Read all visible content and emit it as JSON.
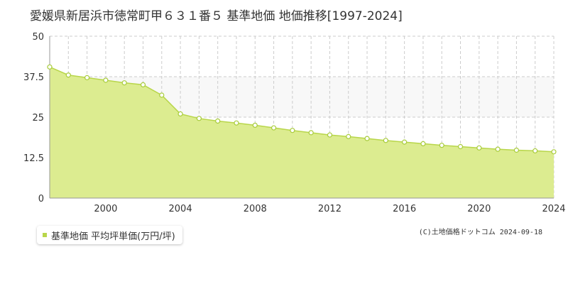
{
  "title": "愛媛県新居浜市徳常町甲６３１番５ 基準地価 地価推移[1997-2024]",
  "legend": {
    "label": "基準地価 平均坪単価(万円/坪)"
  },
  "copyright": "(C)土地価格ドットコム 2024-09-18",
  "colors": {
    "fill": "#dcec90",
    "line": "#b8d64a",
    "marker_fill": "#ffffff",
    "marker_stroke": "#a8cc3a",
    "grid": "#cccccc",
    "band": "#f8f8f8",
    "axis_text": "#333333"
  },
  "chart_data": {
    "type": "area",
    "title": "愛媛県新居浜市徳常町甲６３１番５ 基準地価 地価推移[1997-2024]",
    "x": [
      1997,
      1998,
      1999,
      2000,
      2001,
      2002,
      2003,
      2004,
      2005,
      2006,
      2007,
      2008,
      2009,
      2010,
      2011,
      2012,
      2013,
      2014,
      2015,
      2016,
      2017,
      2018,
      2019,
      2020,
      2021,
      2022,
      2023,
      2024
    ],
    "series": [
      {
        "name": "基準地価 平均坪単価(万円/坪)",
        "values": [
          40.5,
          38.0,
          37.2,
          36.4,
          35.6,
          35.0,
          31.8,
          26.0,
          24.6,
          23.8,
          23.2,
          22.5,
          21.7,
          20.9,
          20.2,
          19.5,
          19.0,
          18.4,
          17.8,
          17.3,
          16.8,
          16.3,
          15.9,
          15.5,
          15.1,
          14.8,
          14.6,
          14.3
        ]
      }
    ],
    "xlim": [
      1997,
      2024
    ],
    "ylim": [
      0,
      50
    ],
    "xticks": [
      "2000",
      "2004",
      "2008",
      "2012",
      "2016",
      "2020",
      "2024"
    ],
    "yticks": [
      "0",
      "12.5",
      "25",
      "37.5",
      "50"
    ],
    "grid": true,
    "legend_position": "bottom-left"
  }
}
